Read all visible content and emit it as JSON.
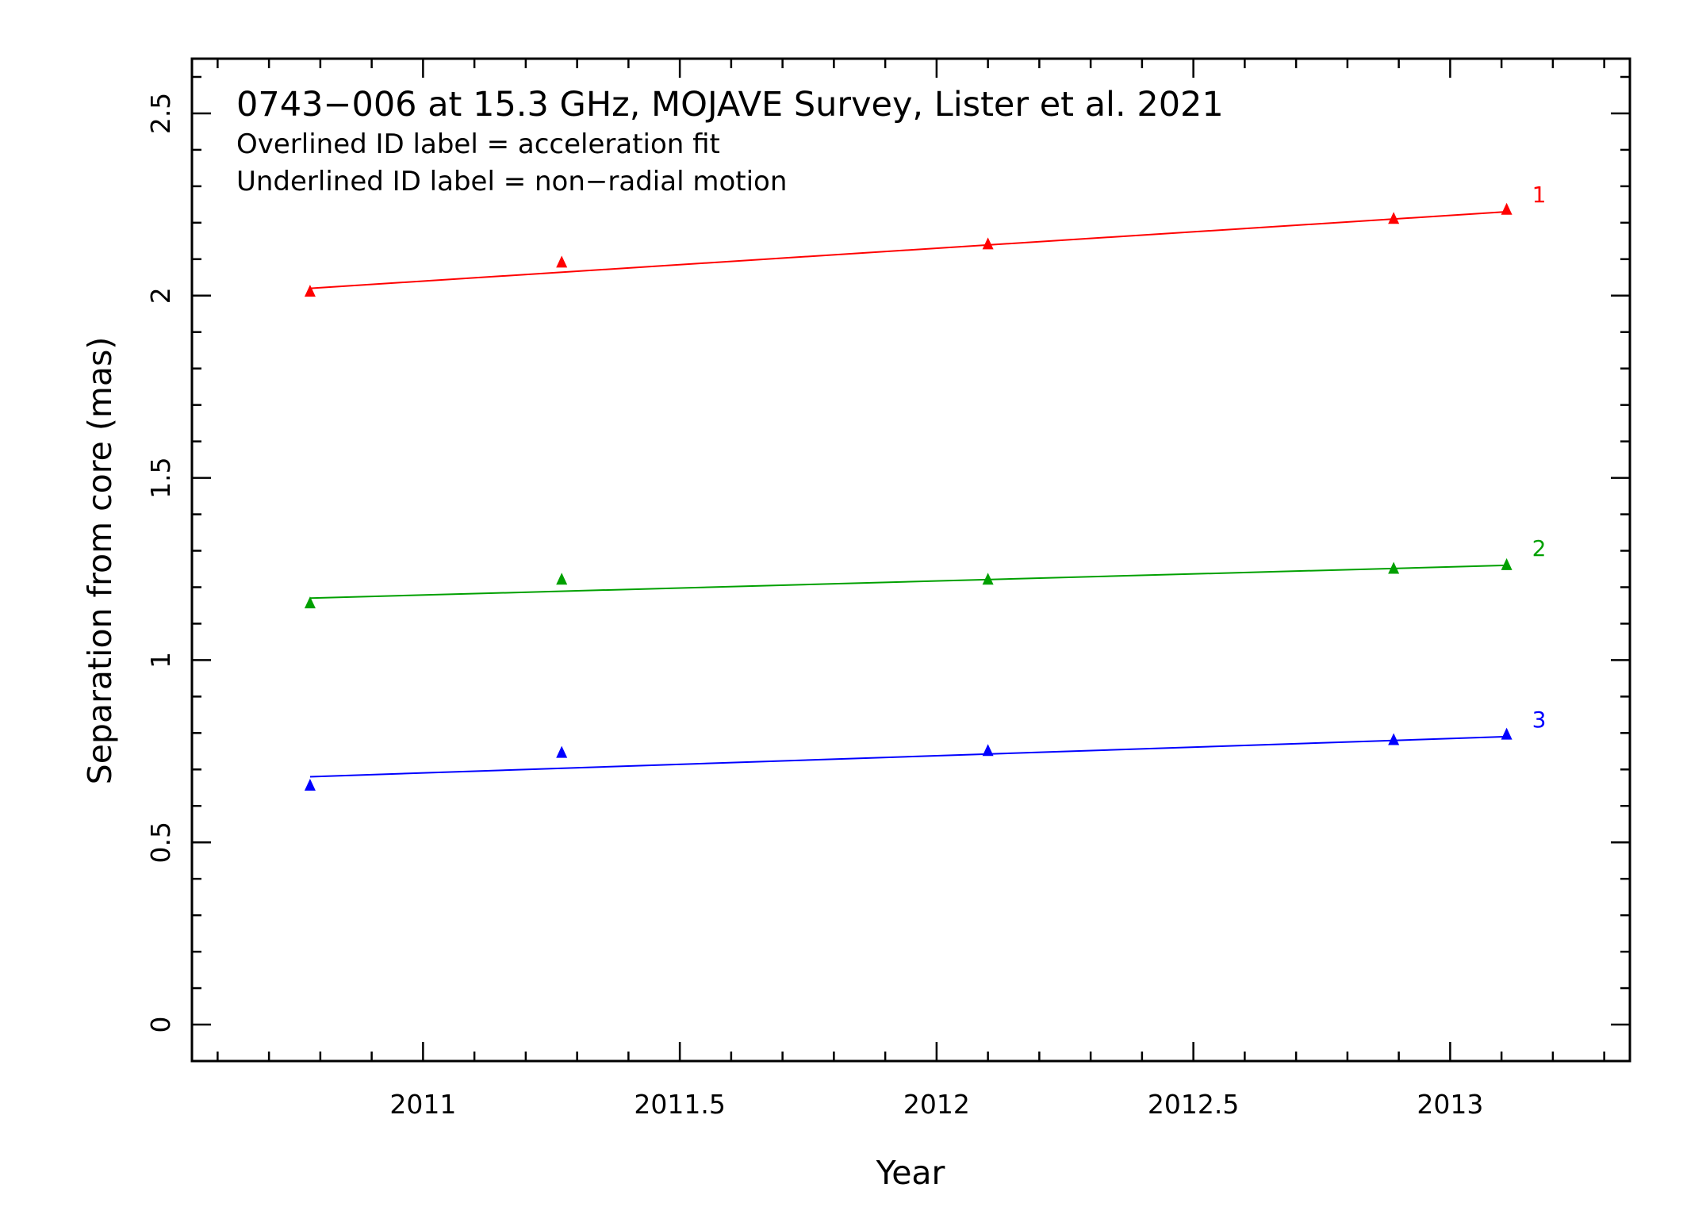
{
  "chart_data": {
    "type": "scatter",
    "title": "0743−006 at 15.3 GHz, MOJAVE Survey, Lister et al. 2021",
    "subtitles": [
      "Overlined ID label = acceleration fit",
      "Underlined ID label = non−radial motion"
    ],
    "xlabel": "Year",
    "ylabel": "Separation from core (mas)",
    "xlim": [
      2010.55,
      2013.35
    ],
    "ylim": [
      -0.1,
      2.65
    ],
    "xticks": [
      2011,
      2011.5,
      2012,
      2012.5,
      2013
    ],
    "xtick_labels": [
      "2011",
      "2011.5",
      "2012",
      "2012.5",
      "2013"
    ],
    "yticks": [
      0,
      0.5,
      1,
      1.5,
      2,
      2.5
    ],
    "ytick_labels": [
      "0",
      "0.5",
      "1",
      "1.5",
      "2",
      "2.5"
    ],
    "x_minor_step": 0.1,
    "y_minor_step": 0.1,
    "grid": false,
    "marker": "triangle",
    "series": [
      {
        "name": "1",
        "color": "#ff0000",
        "x": [
          2010.78,
          2011.27,
          2012.1,
          2012.89,
          2013.11
        ],
        "y": [
          2.01,
          2.09,
          2.14,
          2.21,
          2.235
        ],
        "fit": {
          "x": [
            2010.78,
            2013.11
          ],
          "y": [
            2.02,
            2.23
          ]
        }
      },
      {
        "name": "2",
        "color": "#00a000",
        "x": [
          2010.78,
          2011.27,
          2012.1,
          2012.89,
          2013.11
        ],
        "y": [
          1.155,
          1.22,
          1.22,
          1.25,
          1.26
        ],
        "fit": {
          "x": [
            2010.78,
            2013.11
          ],
          "y": [
            1.17,
            1.26
          ]
        }
      },
      {
        "name": "3",
        "color": "#0000ff",
        "x": [
          2010.78,
          2011.27,
          2012.1,
          2012.89,
          2013.11
        ],
        "y": [
          0.655,
          0.745,
          0.75,
          0.78,
          0.795
        ],
        "fit": {
          "x": [
            2010.78,
            2013.11
          ],
          "y": [
            0.68,
            0.79
          ]
        }
      }
    ]
  }
}
